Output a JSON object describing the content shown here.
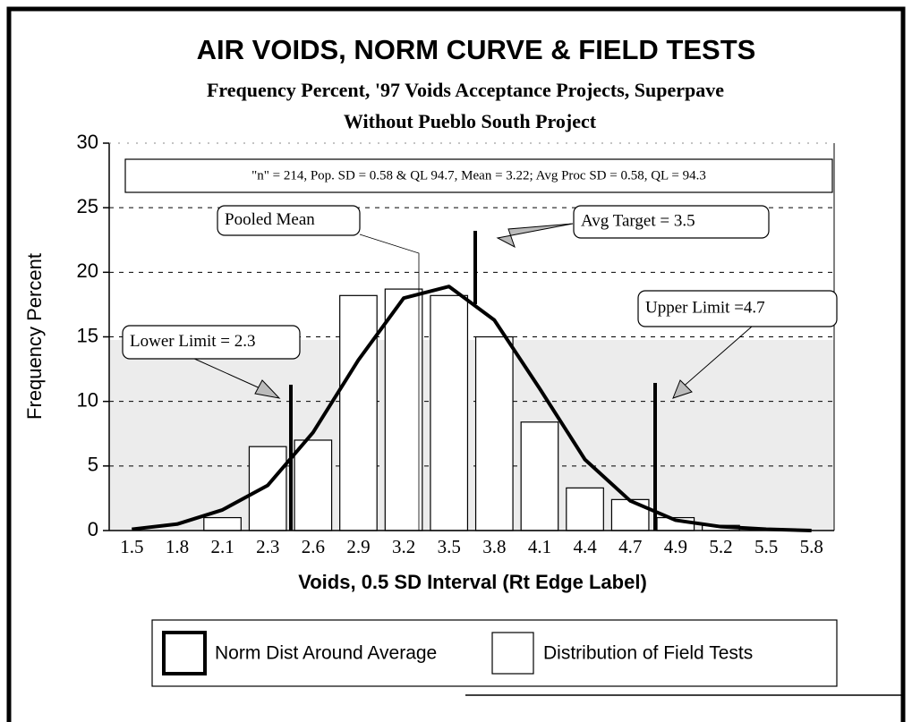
{
  "chart_data": {
    "type": "bar",
    "title": "AIR VOIDS, NORM CURVE & FIELD TESTS",
    "subtitle": [
      "Frequency Percent,  '97 Voids Acceptance Projects, Superpave",
      "Without Pueblo South Project"
    ],
    "x_label": "Voids, 0.5 SD Interval (Rt Edge Label)",
    "y_label": "Frequency Percent",
    "annotations": [
      "\"n\" = 214, Pop. SD = 0.58  & QL 94.7,  Mean = 3.22; Avg Proc SD = 0.58, QL = 94.3",
      "Pooled Mean",
      "Avg Target = 3.5",
      "Upper Limit =4.7",
      "Lower Limit = 2.3"
    ],
    "categories": [
      "1.5",
      "1.8",
      "2.1",
      "2.3",
      "2.6",
      "2.9",
      "3.2",
      "3.5",
      "3.8",
      "4.1",
      "4.4",
      "4.7",
      "4.9",
      "5.2",
      "5.5",
      "5.8"
    ],
    "series": [
      {
        "name": "Norm Dist Around Average",
        "color": "#000000",
        "type": "line",
        "values": [
          0.1,
          0.5,
          1.6,
          3.5,
          7.6,
          13.2,
          18.0,
          18.9,
          16.3,
          11.0,
          5.5,
          2.3,
          0.8,
          0.3,
          0.1,
          0.0
        ]
      },
      {
        "name": "Distribution of Field Tests",
        "color": "#ffffff",
        "type": "bar",
        "values": [
          0,
          0,
          1.0,
          6.5,
          7.0,
          18.2,
          18.7,
          18.2,
          15.0,
          8.4,
          3.3,
          2.4,
          1.0,
          0.4,
          0,
          0
        ]
      }
    ],
    "ylim": [
      0,
      30
    ],
    "yticks": [
      0,
      5,
      10,
      15,
      20,
      25,
      30
    ],
    "grid": true
  }
}
